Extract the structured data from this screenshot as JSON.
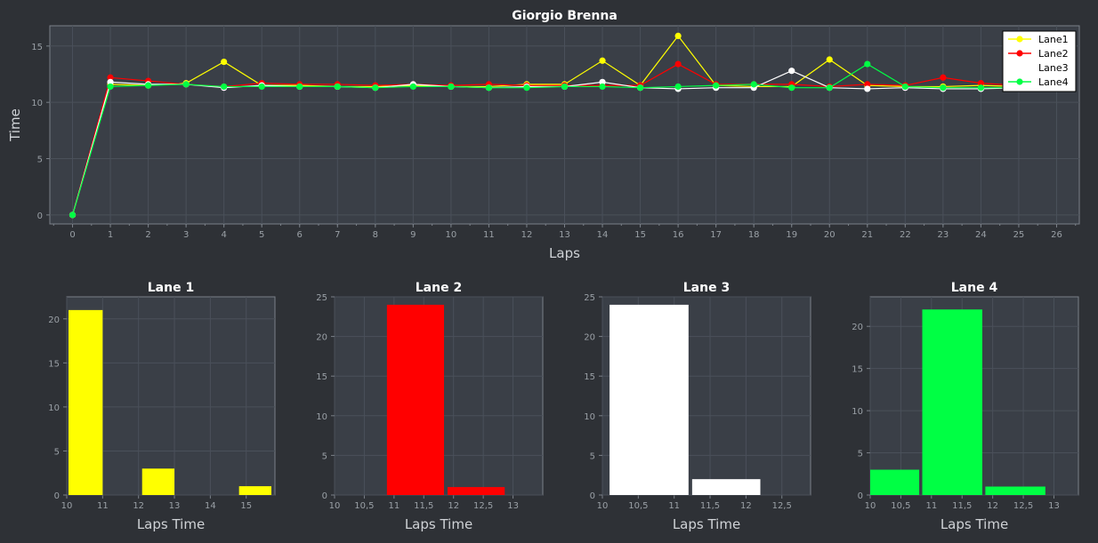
{
  "colors": {
    "page_bg": "#2e3136",
    "plot_bg": "#3a3f47",
    "grid": "#4a505a",
    "axis": "#7a8088",
    "lane1": "#ffff00",
    "lane2": "#ff0000",
    "lane3": "#ffffff",
    "lane4": "#00ff44"
  },
  "chart_data": [
    {
      "type": "line",
      "title": "Giorgio Brenna",
      "xlabel": "Laps",
      "ylabel": "Time",
      "xlim": [
        -0.6,
        26.6
      ],
      "ylim": [
        -0.8,
        16.8
      ],
      "x": [
        0,
        1,
        2,
        3,
        4,
        5,
        6,
        7,
        8,
        9,
        10,
        11,
        12,
        13,
        14,
        15,
        16,
        17,
        18,
        19,
        20,
        21,
        22,
        23,
        24,
        25
      ],
      "xticks": [
        0,
        1,
        2,
        3,
        4,
        5,
        6,
        7,
        8,
        9,
        10,
        11,
        12,
        13,
        14,
        15,
        16,
        17,
        18,
        19,
        20,
        21,
        22,
        23,
        24,
        25,
        26
      ],
      "yticks": [
        0,
        5,
        10,
        15
      ],
      "grid": true,
      "legend_position": "top-right",
      "series": [
        {
          "name": "Lane1",
          "color_key": "lane1",
          "values": [
            0,
            11.6,
            11.5,
            11.7,
            13.6,
            11.5,
            11.5,
            11.4,
            11.4,
            11.5,
            11.4,
            11.4,
            11.6,
            11.6,
            13.7,
            11.5,
            15.9,
            11.5,
            11.4,
            11.4,
            13.8,
            11.5,
            11.4,
            11.4,
            11.5,
            11.4
          ]
        },
        {
          "name": "Lane2",
          "color_key": "lane2",
          "values": [
            0,
            12.2,
            11.9,
            11.6,
            11.4,
            11.7,
            11.6,
            11.6,
            11.5,
            11.6,
            11.5,
            11.6,
            11.5,
            11.5,
            11.5,
            11.5,
            13.4,
            11.6,
            11.6,
            11.6,
            11.4,
            11.6,
            11.5,
            12.2,
            11.7,
            11.5
          ]
        },
        {
          "name": "Lane3",
          "color_key": "lane3",
          "values": [
            0,
            11.8,
            11.6,
            11.6,
            11.3,
            11.5,
            11.4,
            11.4,
            11.3,
            11.6,
            11.4,
            11.3,
            11.4,
            11.4,
            11.8,
            11.3,
            11.2,
            11.3,
            11.3,
            12.8,
            11.3,
            11.2,
            11.3,
            11.2,
            11.2,
            11.3
          ]
        },
        {
          "name": "Lane4",
          "color_key": "lane4",
          "values": [
            0,
            11.4,
            11.5,
            11.6,
            11.4,
            11.4,
            11.4,
            11.4,
            11.3,
            11.4,
            11.4,
            11.3,
            11.3,
            11.4,
            11.4,
            11.3,
            11.4,
            11.5,
            11.6,
            11.3,
            11.3,
            13.4,
            11.4,
            11.3,
            11.3,
            11.3
          ]
        }
      ]
    },
    {
      "type": "bar",
      "title": "Lane 1",
      "xlabel": "Laps Time",
      "ylabel": "",
      "color_key": "lane1",
      "xlim": [
        10,
        15.8
      ],
      "ylim": [
        0,
        22.5
      ],
      "xticks": [
        {
          "v": 10,
          "label": "10"
        },
        {
          "v": 11,
          "label": "11"
        },
        {
          "v": 12,
          "label": "12"
        },
        {
          "v": 13,
          "label": "13"
        },
        {
          "v": 14,
          "label": "14"
        },
        {
          "v": 15,
          "label": "15"
        }
      ],
      "yticks": [
        0,
        5,
        10,
        15,
        20
      ],
      "bins": [
        {
          "x0": 10.05,
          "x1": 11.0,
          "count": 21
        },
        {
          "x0": 12.1,
          "x1": 13.0,
          "count": 3
        },
        {
          "x0": 14.8,
          "x1": 15.7,
          "count": 1
        }
      ]
    },
    {
      "type": "bar",
      "title": "Lane 2",
      "xlabel": "Laps Time",
      "ylabel": "",
      "color_key": "lane2",
      "xlim": [
        10,
        13.5
      ],
      "ylim": [
        0,
        25
      ],
      "xticks": [
        {
          "v": 10,
          "label": "10"
        },
        {
          "v": 10.5,
          "label": "10,5"
        },
        {
          "v": 11,
          "label": "11"
        },
        {
          "v": 11.5,
          "label": "11,5"
        },
        {
          "v": 12,
          "label": "12"
        },
        {
          "v": 12.5,
          "label": "12,5"
        },
        {
          "v": 13,
          "label": "13"
        }
      ],
      "yticks": [
        0,
        5,
        10,
        15,
        20,
        25
      ],
      "bins": [
        {
          "x0": 10.88,
          "x1": 11.84,
          "count": 24
        },
        {
          "x0": 11.9,
          "x1": 12.86,
          "count": 1
        }
      ]
    },
    {
      "type": "bar",
      "title": "Lane 3",
      "xlabel": "Laps Time",
      "ylabel": "",
      "color_key": "lane3",
      "xlim": [
        10,
        12.9
      ],
      "ylim": [
        0,
        25
      ],
      "xticks": [
        {
          "v": 10,
          "label": "10"
        },
        {
          "v": 10.5,
          "label": "10,5"
        },
        {
          "v": 11,
          "label": "11"
        },
        {
          "v": 11.5,
          "label": "11,5"
        },
        {
          "v": 12,
          "label": "12"
        },
        {
          "v": 12.5,
          "label": "12,5"
        }
      ],
      "yticks": [
        0,
        5,
        10,
        15,
        20,
        25
      ],
      "bins": [
        {
          "x0": 10.1,
          "x1": 11.2,
          "count": 24
        },
        {
          "x0": 11.25,
          "x1": 12.2,
          "count": 2
        }
      ]
    },
    {
      "type": "bar",
      "title": "Lane 4",
      "xlabel": "Laps Time",
      "ylabel": "",
      "color_key": "lane4",
      "xlim": [
        10,
        13.4
      ],
      "ylim": [
        0,
        23.5
      ],
      "xticks": [
        {
          "v": 10,
          "label": "10"
        },
        {
          "v": 10.5,
          "label": "10,5"
        },
        {
          "v": 11,
          "label": "11"
        },
        {
          "v": 11.5,
          "label": "11,5"
        },
        {
          "v": 12,
          "label": "12"
        },
        {
          "v": 12.5,
          "label": "12,5"
        },
        {
          "v": 13,
          "label": "13"
        }
      ],
      "yticks": [
        0,
        5,
        10,
        15,
        20
      ],
      "bins": [
        {
          "x0": 10.0,
          "x1": 10.8,
          "count": 3
        },
        {
          "x0": 10.85,
          "x1": 11.83,
          "count": 22
        },
        {
          "x0": 11.88,
          "x1": 12.86,
          "count": 1
        }
      ]
    }
  ]
}
